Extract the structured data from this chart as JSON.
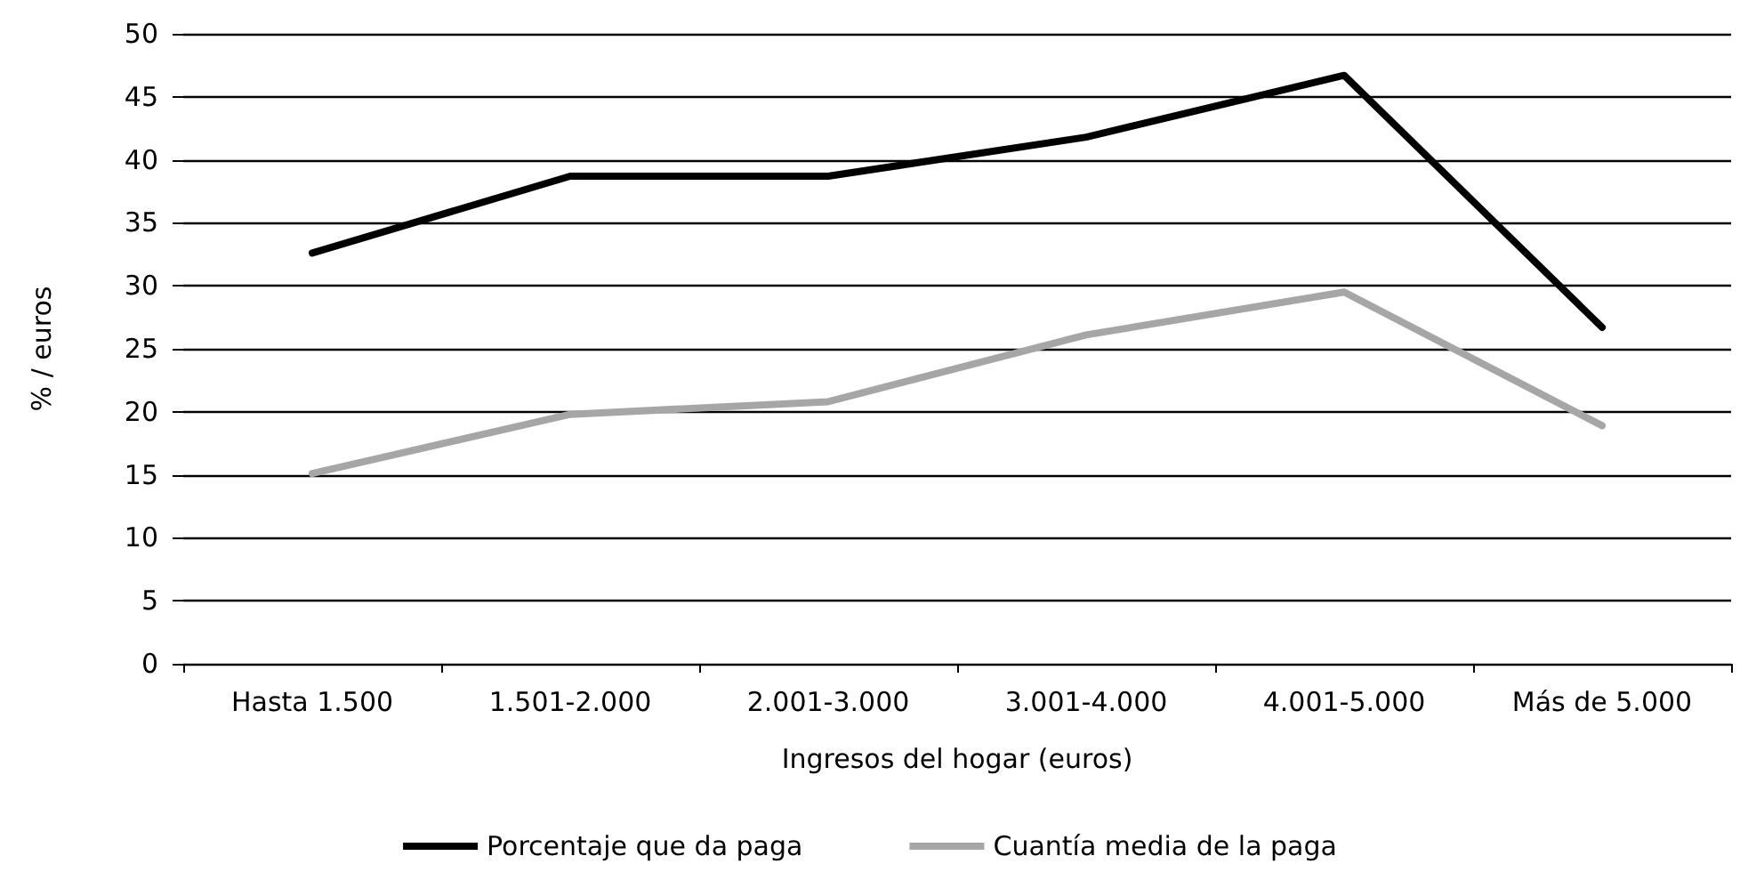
{
  "chart_data": {
    "type": "line",
    "xlabel": "Ingresos del hogar (euros)",
    "ylabel": "% / euros",
    "categories": [
      "Hasta 1.500",
      "1.501-2.000",
      "2.001-3.000",
      "3.001-4.000",
      "4.001-5.000",
      "Más de 5.000"
    ],
    "series": [
      {
        "name": "Porcentaje que da paga",
        "color": "#000000",
        "values": [
          32.6,
          38.7,
          38.7,
          41.8,
          46.7,
          26.7
        ]
      },
      {
        "name": "Cuantía media de la paga",
        "color": "#a6a6a6",
        "values": [
          15.1,
          19.8,
          20.8,
          26.1,
          29.5,
          18.9
        ]
      }
    ],
    "ylim": [
      0,
      50
    ],
    "yticks": [
      0,
      5,
      10,
      15,
      20,
      25,
      30,
      35,
      40,
      45,
      50
    ],
    "grid": "y",
    "legend": "bottom",
    "marker": "none",
    "line_style": "solid"
  }
}
